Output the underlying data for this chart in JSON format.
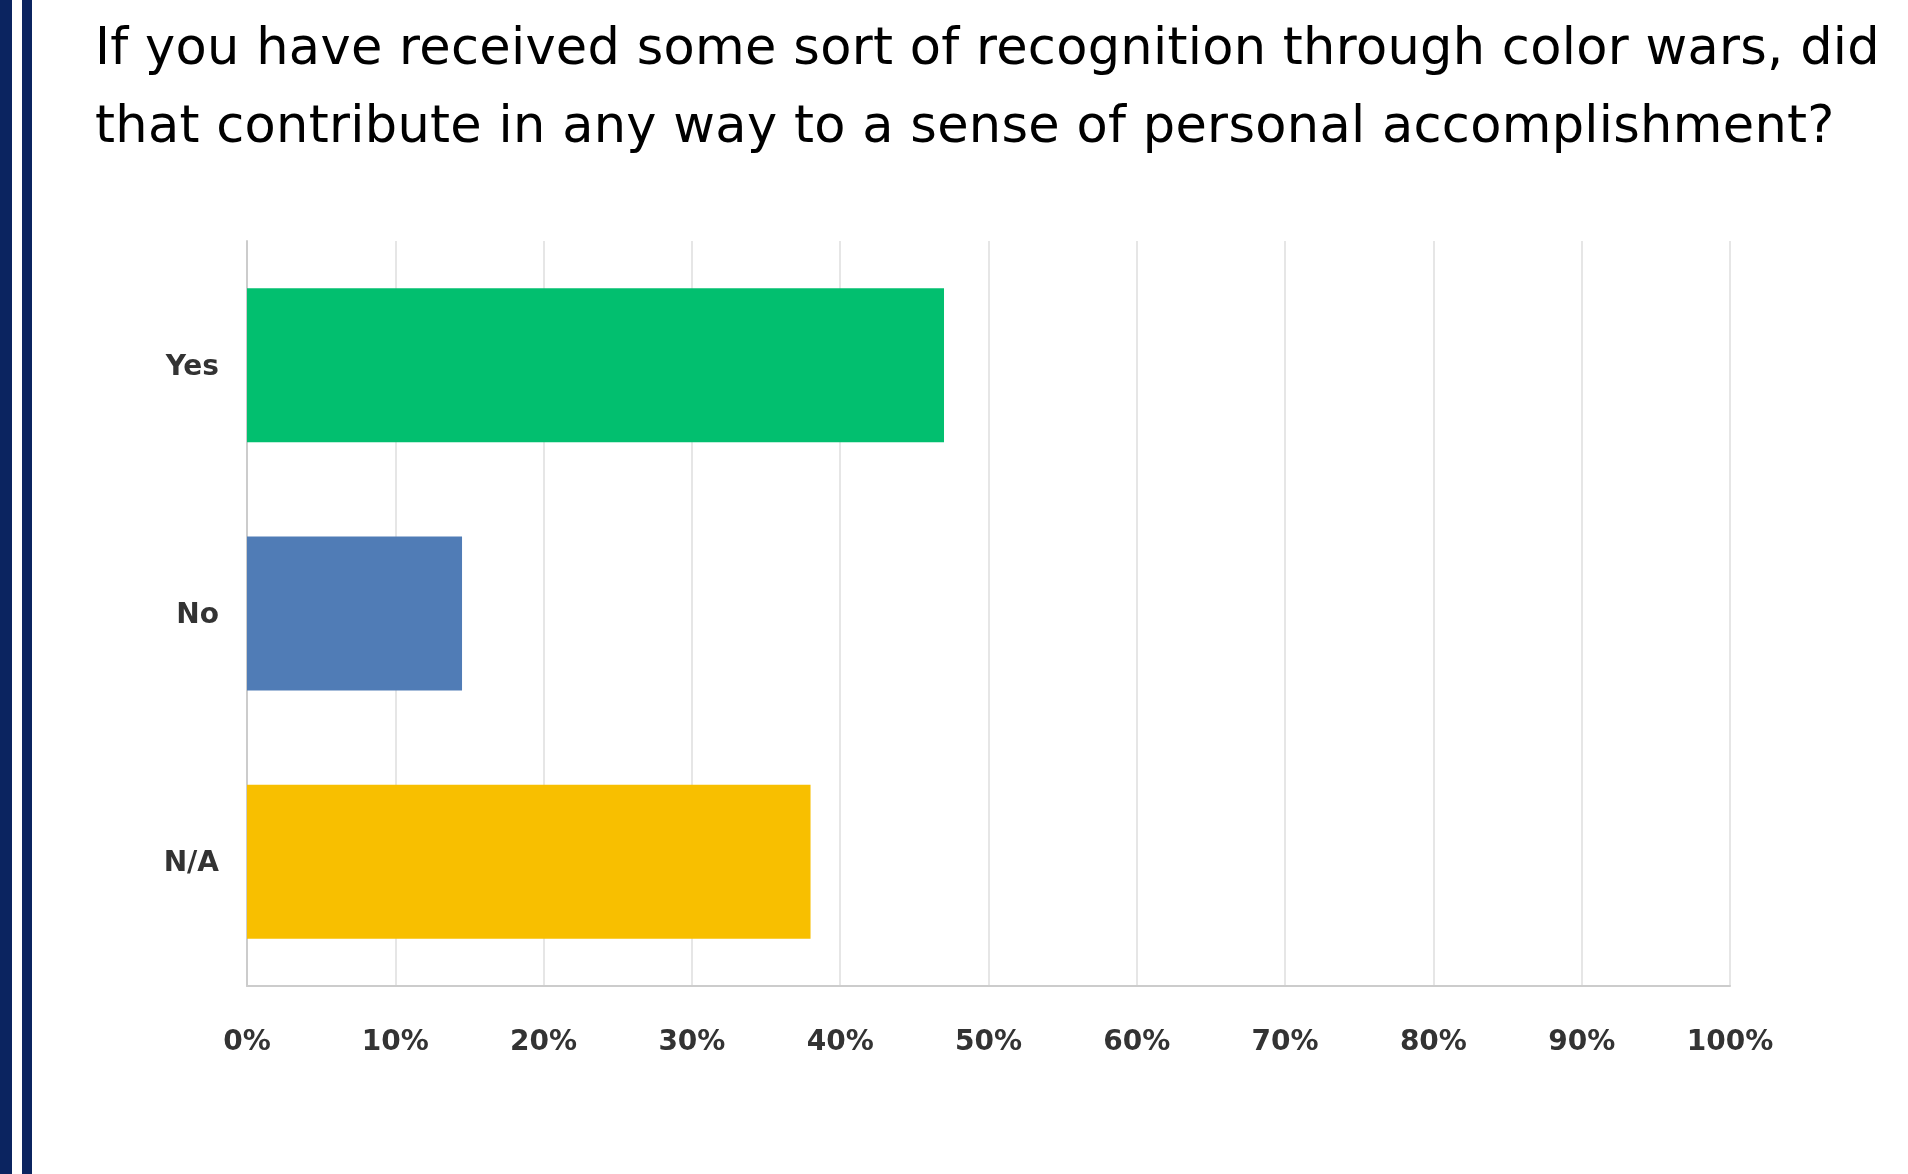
{
  "chart_data": {
    "type": "bar",
    "orientation": "horizontal",
    "title": "If you have received some sort of recognition through color wars, did that contribute in any way to a sense of personal accomplishment?",
    "categories": [
      "Yes",
      "No",
      "N/A"
    ],
    "values": [
      47,
      14.5,
      38
    ],
    "colors": [
      "#02bf6f",
      "#507cb6",
      "#f8bf00"
    ],
    "xlim": [
      0,
      100
    ],
    "xticks": [
      {
        "value": 0,
        "label": "0%"
      },
      {
        "value": 10,
        "label": "10%"
      },
      {
        "value": 20,
        "label": "20%"
      },
      {
        "value": 30,
        "label": "30%"
      },
      {
        "value": 40,
        "label": "40%"
      },
      {
        "value": 50,
        "label": "50%"
      },
      {
        "value": 60,
        "label": "60%"
      },
      {
        "value": 70,
        "label": "70%"
      },
      {
        "value": 80,
        "label": "80%"
      },
      {
        "value": 90,
        "label": "90%"
      },
      {
        "value": 100,
        "label": "100%"
      }
    ],
    "grid": "x"
  }
}
